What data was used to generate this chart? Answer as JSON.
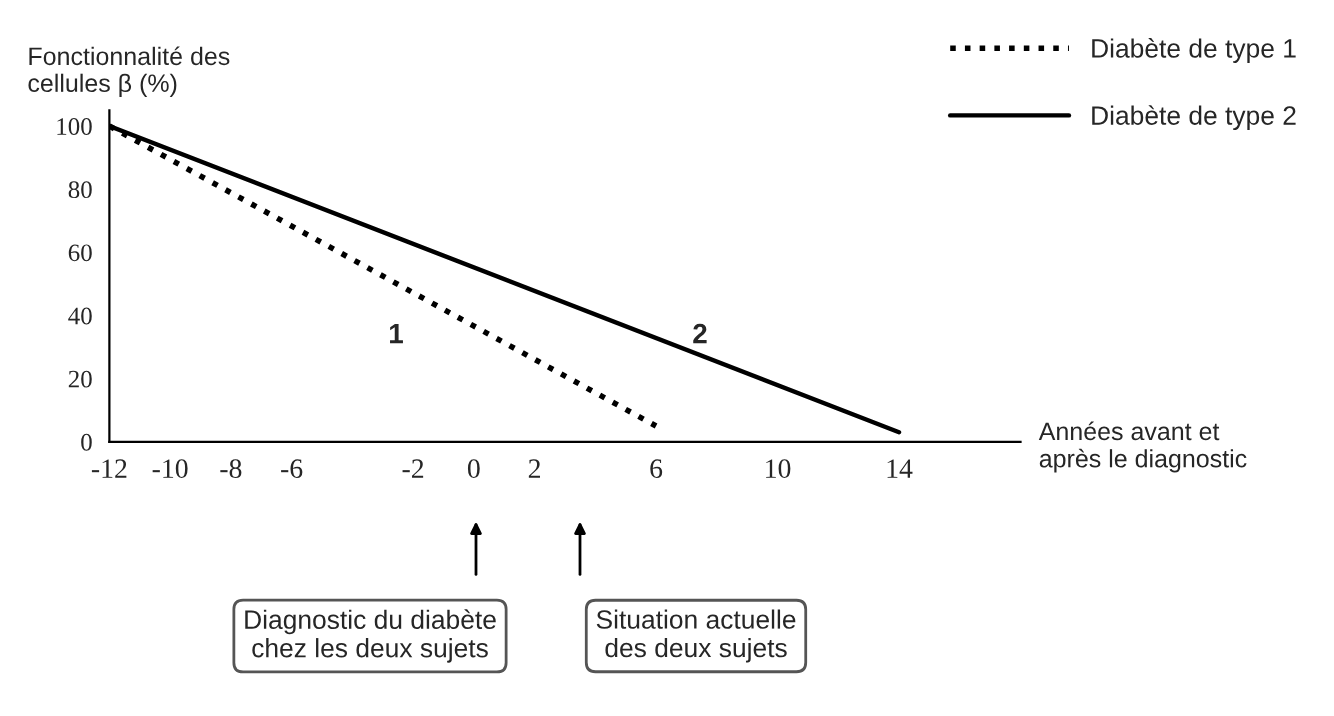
{
  "chart_data": {
    "type": "line",
    "ylabel": "Fonctionnalité des\ncellules β (%)",
    "xlabel": "Années avant et\naprès le diagnostic",
    "series": [
      {
        "name": "Diabète de type 1",
        "color": "#000000",
        "line_style": "dotted",
        "x": [
          -12,
          6
        ],
        "values": [
          100,
          5
        ]
      },
      {
        "name": "Diabète de type 2",
        "color": "#000000",
        "line_style": "solid",
        "x": [
          -12,
          14
        ],
        "values": [
          100,
          3
        ]
      }
    ],
    "xlim": [
      -12,
      18
    ],
    "xticks": [
      -12,
      -10,
      -8,
      -6,
      -2,
      0,
      2,
      6,
      10,
      14
    ],
    "ylim": [
      0,
      105
    ],
    "yticks": [
      0,
      20,
      40,
      60,
      80,
      100
    ],
    "grid": false,
    "legend": "top right",
    "marker": "none",
    "annotations": [
      "1",
      "2",
      "Diagnostic du diabète\nchez les deux sujets",
      "Situation actuelle\ndes deux sujets"
    ]
  }
}
